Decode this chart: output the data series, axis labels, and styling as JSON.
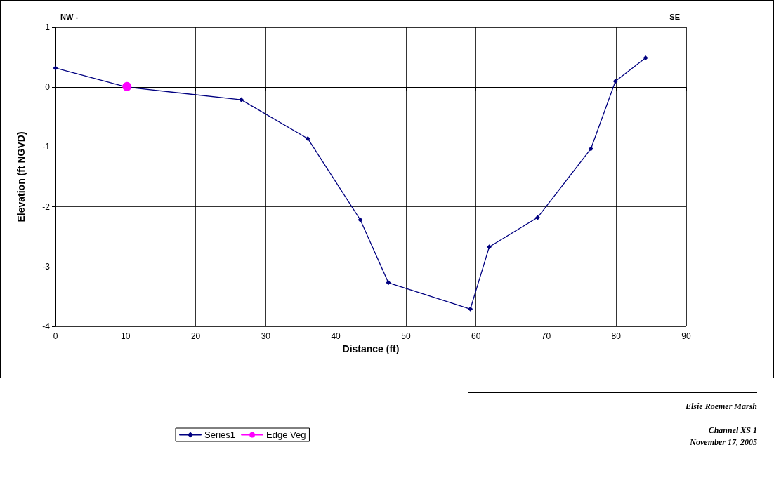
{
  "chart_data": {
    "type": "line",
    "xlabel": "Distance (ft)",
    "ylabel": "Elevation (ft NGVD)",
    "xlim": [
      0,
      90
    ],
    "xticks": [
      0,
      10,
      20,
      30,
      40,
      50,
      60,
      70,
      80,
      90
    ],
    "ylim": [
      -4,
      1
    ],
    "yticks": [
      -4,
      -3,
      -2,
      -1,
      0,
      1
    ],
    "grid": true,
    "legend": "bottom",
    "series": [
      {
        "name": "Series1",
        "color": "#000080",
        "marker": "diamond",
        "x": [
          0,
          10.2,
          26.5,
          36.0,
          43.5,
          47.5,
          59.2,
          61.9,
          68.8,
          76.4,
          79.9,
          84.2
        ],
        "values": [
          0.32,
          0.0,
          -0.21,
          -0.86,
          -2.22,
          -3.27,
          -3.71,
          -2.67,
          -2.18,
          -1.03,
          0.1,
          0.49
        ]
      },
      {
        "name": "Edge Veg",
        "color": "#ff00ff",
        "marker": "circle",
        "x": [
          10.2
        ],
        "values": [
          0.01
        ]
      }
    ],
    "annotations": [
      "NW -",
      "SE",
      "Elsie Roemer Marsh",
      "Channel XS 1",
      "November 17, 2005"
    ]
  }
}
